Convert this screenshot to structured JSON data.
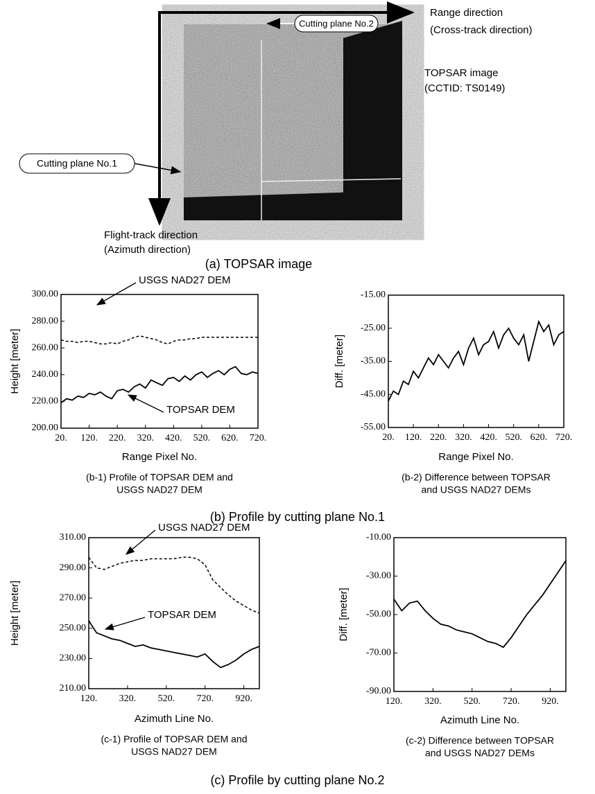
{
  "figure_a": {
    "range_direction": "Range direction",
    "cross_track": "(Cross-track direction)",
    "cutting_plane_2": "Cutting plane No.2",
    "image_title": "TOPSAR image",
    "cctid": "(CCTID: TS0149)",
    "cutting_plane_1": "Cutting plane No.1",
    "flight_track": "Flight-track direction",
    "azimuth": "(Azimuth direction)",
    "caption": "(a) TOPSAR image"
  },
  "sections": {
    "b": "(b) Profile by  cutting plane No.1",
    "c": "(c) Profile by  cutting plane No.2"
  },
  "chart_data": [
    {
      "type": "line",
      "xlabel": "Range Pixel No.",
      "ylabel": "Height [meter]",
      "caption": [
        "(b-1) Profile of TOPSAR DEM and",
        "USGS NAD27 DEM"
      ],
      "x": [
        20,
        40,
        60,
        80,
        100,
        120,
        140,
        160,
        180,
        200,
        220,
        240,
        260,
        280,
        300,
        320,
        340,
        360,
        380,
        400,
        420,
        440,
        460,
        480,
        500,
        520,
        540,
        560,
        580,
        600,
        620,
        640,
        660,
        680,
        700,
        720
      ],
      "xlim": [
        20,
        720
      ],
      "xticks": [
        {
          "value": 20,
          "label": "20."
        },
        {
          "value": 120,
          "label": "120."
        },
        {
          "value": 220,
          "label": "220."
        },
        {
          "value": 320,
          "label": "320."
        },
        {
          "value": 420,
          "label": "420."
        },
        {
          "value": 520,
          "label": "520."
        },
        {
          "value": 620,
          "label": "620."
        },
        {
          "value": 720,
          "label": "720."
        }
      ],
      "ylim": [
        200,
        300
      ],
      "yticks": [
        {
          "value": 200,
          "label": "200.00"
        },
        {
          "value": 220,
          "label": "220.00"
        },
        {
          "value": 240,
          "label": "240.00"
        },
        {
          "value": 260,
          "label": "260.00"
        },
        {
          "value": 280,
          "label": "280.00"
        },
        {
          "value": 300,
          "label": "300.00"
        }
      ],
      "series": [
        {
          "name": "USGS NAD27 DEM",
          "color": "#000000",
          "dashed": true,
          "values": [
            266,
            265,
            265,
            264,
            265,
            265,
            264,
            263,
            263,
            264,
            263,
            265,
            266,
            268,
            269,
            268,
            267,
            266,
            264,
            263,
            265,
            266,
            266,
            267,
            267,
            268,
            268,
            268,
            268,
            268,
            268,
            268,
            268,
            268,
            268,
            268
          ]
        },
        {
          "name": "TOPSAR DEM",
          "color": "#000000",
          "dashed": false,
          "values": [
            219,
            222,
            221,
            224,
            223,
            226,
            225,
            227,
            224,
            222,
            228,
            229,
            227,
            231,
            233,
            230,
            236,
            234,
            232,
            237,
            238,
            235,
            239,
            236,
            240,
            242,
            238,
            241,
            243,
            240,
            244,
            246,
            241,
            240,
            242,
            241
          ]
        }
      ]
    },
    {
      "type": "line",
      "xlabel": "Range Pixel No.",
      "ylabel": "Diff. [meter]",
      "caption": [
        "(b-2) Difference between TOPSAR",
        "and USGS NAD27 DEMs"
      ],
      "x": [
        20,
        40,
        60,
        80,
        100,
        120,
        140,
        160,
        180,
        200,
        220,
        240,
        260,
        280,
        300,
        320,
        340,
        360,
        380,
        400,
        420,
        440,
        460,
        480,
        500,
        520,
        540,
        560,
        580,
        600,
        620,
        640,
        660,
        680,
        700,
        720
      ],
      "xlim": [
        20,
        720
      ],
      "xticks": [
        {
          "value": 20,
          "label": "20."
        },
        {
          "value": 120,
          "label": "120."
        },
        {
          "value": 220,
          "label": "220."
        },
        {
          "value": 320,
          "label": "320."
        },
        {
          "value": 420,
          "label": "420."
        },
        {
          "value": 520,
          "label": "520."
        },
        {
          "value": 620,
          "label": "620."
        },
        {
          "value": 720,
          "label": "720."
        }
      ],
      "ylim": [
        -55,
        -15
      ],
      "yticks": [
        {
          "value": -55,
          "label": "-55.00"
        },
        {
          "value": -45,
          "label": "-45.00"
        },
        {
          "value": -35,
          "label": "-35.00"
        },
        {
          "value": -25,
          "label": "-25.00"
        },
        {
          "value": -15,
          "label": "-15.00"
        }
      ],
      "series": [
        {
          "color": "#000000",
          "dashed": false,
          "values": [
            -47,
            -44,
            -45,
            -41,
            -42,
            -38,
            -40,
            -37,
            -34,
            -36,
            -33,
            -35,
            -37,
            -34,
            -32,
            -36,
            -31,
            -28,
            -33,
            -30,
            -29,
            -26,
            -31,
            -27,
            -25,
            -28,
            -30,
            -27,
            -35,
            -29,
            -23,
            -26,
            -24,
            -30,
            -27,
            -26
          ]
        }
      ]
    },
    {
      "type": "line",
      "xlabel": "Azimuth Line No.",
      "ylabel": "Height [meter]",
      "caption": [
        "(c-1) Profile of TOPSAR DEM and",
        "USGS NAD27 DEM"
      ],
      "x": [
        120,
        160,
        200,
        240,
        280,
        320,
        360,
        400,
        440,
        480,
        520,
        560,
        600,
        640,
        680,
        720,
        760,
        800,
        840,
        880,
        920,
        960,
        1000
      ],
      "xlim": [
        120,
        1000
      ],
      "xticks": [
        {
          "value": 120,
          "label": "120."
        },
        {
          "value": 320,
          "label": "320."
        },
        {
          "value": 520,
          "label": "520."
        },
        {
          "value": 720,
          "label": "720."
        },
        {
          "value": 920,
          "label": "920."
        }
      ],
      "ylim": [
        210,
        310
      ],
      "yticks": [
        {
          "value": 210,
          "label": "210.00"
        },
        {
          "value": 230,
          "label": "230.00"
        },
        {
          "value": 250,
          "label": "250.00"
        },
        {
          "value": 270,
          "label": "270.00"
        },
        {
          "value": 290,
          "label": "290.00"
        },
        {
          "value": 310,
          "label": "310.00"
        }
      ],
      "series": [
        {
          "name": "USGS NAD27 DEM",
          "color": "#000000",
          "dashed": true,
          "values": [
            297,
            290,
            289,
            291,
            293,
            294,
            295,
            295,
            296,
            296,
            296,
            296,
            297,
            297,
            296,
            292,
            282,
            277,
            272,
            268,
            265,
            262,
            260
          ]
        },
        {
          "name": "TOPSAR DEM",
          "color": "#000000",
          "dashed": false,
          "values": [
            255,
            247,
            245,
            243,
            242,
            240,
            238,
            239,
            237,
            236,
            235,
            234,
            233,
            232,
            231,
            233,
            228,
            224,
            226,
            229,
            233,
            236,
            238
          ]
        }
      ]
    },
    {
      "type": "line",
      "xlabel": "Azimuth Line No.",
      "ylabel": "Diff. [meter]",
      "caption": [
        "(c-2) Difference between TOPSAR",
        "and USGS NAD27 DEMs"
      ],
      "x": [
        120,
        160,
        200,
        240,
        280,
        320,
        360,
        400,
        440,
        480,
        520,
        560,
        600,
        640,
        680,
        720,
        760,
        800,
        840,
        880,
        920,
        960,
        1000
      ],
      "xlim": [
        120,
        1000
      ],
      "xticks": [
        {
          "value": 120,
          "label": "120."
        },
        {
          "value": 320,
          "label": "320."
        },
        {
          "value": 520,
          "label": "520."
        },
        {
          "value": 720,
          "label": "720."
        },
        {
          "value": 920,
          "label": "920."
        }
      ],
      "ylim": [
        -90,
        -10
      ],
      "yticks": [
        {
          "value": -90,
          "label": "-90.00"
        },
        {
          "value": -70,
          "label": "-70.00"
        },
        {
          "value": -50,
          "label": "-50.00"
        },
        {
          "value": -30,
          "label": "-30.00"
        },
        {
          "value": -10,
          "label": "-10.00"
        }
      ],
      "series": [
        {
          "color": "#000000",
          "dashed": false,
          "values": [
            -42,
            -48,
            -44,
            -43,
            -48,
            -52,
            -55,
            -56,
            -58,
            -59,
            -60,
            -62,
            -64,
            -65,
            -67,
            -62,
            -56,
            -50,
            -45,
            -40,
            -34,
            -28,
            -22
          ]
        }
      ]
    }
  ]
}
